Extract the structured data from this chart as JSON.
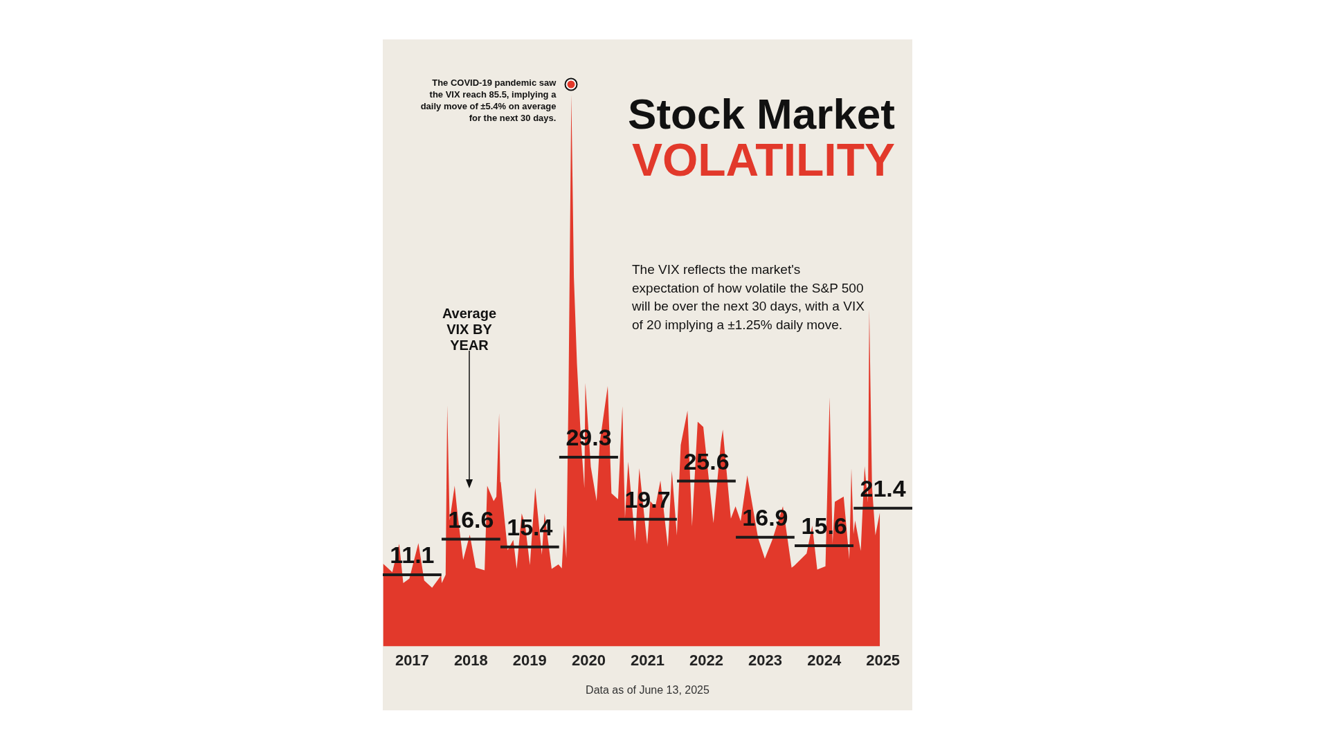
{
  "chart_data": {
    "type": "area",
    "title": "Stock Market VOLATILITY",
    "subtitle": "The VIX reflects the market's expectation of how volatile the S&P 500 will be over the next 30 days, with a VIX of 20 implying a ±1.25% daily move.",
    "annotations": [
      {
        "text": "The COVID-19 pandemic saw the VIX reach 85.5, implying a daily move of ±5.4% on average for the next 30 days.",
        "x": "2020-03-16",
        "y": 85.5
      },
      "Average VIX BY YEAR",
      "Data as of June 13, 2025"
    ],
    "xlim": [
      "2017-01-01",
      "2025-12-31"
    ],
    "xticks": [
      {
        "value": "2017-07-02",
        "label": "2017"
      },
      {
        "value": "2018-07-02",
        "label": "2018"
      },
      {
        "value": "2019-07-02",
        "label": "2019"
      },
      {
        "value": "2020-07-02",
        "label": "2020"
      },
      {
        "value": "2021-07-02",
        "label": "2021"
      },
      {
        "value": "2022-07-02",
        "label": "2022"
      },
      {
        "value": "2023-07-02",
        "label": "2023"
      },
      {
        "value": "2024-07-02",
        "label": "2024"
      },
      {
        "value": "2025-07-02",
        "label": "2025"
      }
    ],
    "ylim": [
      0,
      94
    ],
    "tick_labels": "x",
    "grid": false,
    "legend": false,
    "marker": "none",
    "series": [
      {
        "color": "#e2392b",
        "x": [
          "2017-01-03",
          "2017-03-01",
          "2017-04-13",
          "2017-05-08",
          "2017-06-15",
          "2017-08-10",
          "2017-09-15",
          "2017-11-03",
          "2017-12-29",
          "2018-01-02",
          "2018-01-26",
          "2018-02-05",
          "2018-02-20",
          "2018-03-23",
          "2018-04-10",
          "2018-05-15",
          "2018-06-25",
          "2018-08-01",
          "2018-09-25",
          "2018-10-11",
          "2018-11-20",
          "2018-12-07",
          "2018-12-24",
          "2018-12-31",
          "2019-01-03",
          "2019-02-15",
          "2019-03-22",
          "2019-04-12",
          "2019-05-13",
          "2019-06-03",
          "2019-07-03",
          "2019-08-05",
          "2019-09-15",
          "2019-10-02",
          "2019-11-15",
          "2019-12-27",
          "2020-01-17",
          "2020-01-31",
          "2020-02-14",
          "2020-02-28",
          "2020-03-16",
          "2020-04-01",
          "2020-04-20",
          "2020-05-15",
          "2020-06-05",
          "2020-06-11",
          "2020-07-15",
          "2020-08-20",
          "2020-09-08",
          "2020-10-28",
          "2020-11-20",
          "2020-12-31",
          "2021-01-27",
          "2021-02-12",
          "2021-03-04",
          "2021-04-16",
          "2021-05-12",
          "2021-06-30",
          "2021-07-19",
          "2021-08-19",
          "2021-09-20",
          "2021-11-05",
          "2021-11-30",
          "2021-12-31",
          "2022-01-24",
          "2022-03-07",
          "2022-04-04",
          "2022-05-09",
          "2022-06-13",
          "2022-08-15",
          "2022-09-30",
          "2022-10-12",
          "2022-12-01",
          "2022-12-30",
          "2023-01-31",
          "2023-03-13",
          "2023-05-19",
          "2023-06-30",
          "2023-08-15",
          "2023-10-20",
          "2023-12-13",
          "2023-12-29",
          "2024-03-15",
          "2024-04-19",
          "2024-05-20",
          "2024-07-10",
          "2024-08-05",
          "2024-08-23",
          "2024-09-06",
          "2024-10-31",
          "2024-12-05",
          "2024-12-18",
          "2024-12-31",
          "2025-01-10",
          "2025-02-14",
          "2025-03-10",
          "2025-03-31",
          "2025-04-08",
          "2025-04-25",
          "2025-05-16",
          "2025-06-13"
        ],
        "values": [
          12.8,
          11.5,
          15.9,
          9.8,
          10.5,
          16.0,
          10.2,
          9.1,
          11.0,
          9.8,
          11.1,
          37.3,
          19.5,
          24.9,
          20.5,
          13.4,
          17.3,
          12.2,
          11.8,
          24.9,
          22.5,
          23.2,
          36.1,
          25.4,
          25.5,
          14.9,
          16.5,
          12.0,
          20.6,
          18.9,
          12.6,
          24.6,
          14.2,
          20.6,
          12.0,
          12.7,
          12.1,
          18.8,
          13.7,
          40.1,
          85.5,
          57.1,
          43.8,
          31.9,
          24.5,
          40.8,
          27.8,
          22.5,
          31.5,
          40.3,
          23.7,
          22.8,
          37.2,
          19.9,
          28.6,
          16.3,
          27.6,
          15.8,
          22.5,
          21.6,
          25.7,
          15.4,
          27.2,
          17.2,
          31.2,
          36.5,
          18.6,
          34.8,
          34.0,
          19.1,
          31.6,
          33.6,
          19.8,
          21.7,
          19.4,
          26.5,
          16.8,
          13.6,
          16.5,
          21.7,
          12.2,
          12.5,
          14.4,
          18.7,
          11.9,
          12.4,
          38.6,
          15.9,
          22.4,
          23.2,
          13.5,
          27.6,
          17.4,
          19.5,
          14.8,
          27.9,
          22.3,
          52.3,
          24.8,
          17.2,
          20.8
        ]
      },
      {
        "type": "line",
        "color": "#1b1b1b",
        "x": [
          "2017-01-01",
          "2017-07-02",
          "2017-12-31"
        ],
        "values": [
          11.1,
          11.1,
          11.1
        ],
        "value_labels": [
          null,
          "11.1",
          null
        ]
      },
      {
        "type": "line",
        "color": "#1b1b1b",
        "x": [
          "2018-01-01",
          "2018-07-02",
          "2018-12-31"
        ],
        "values": [
          16.6,
          16.6,
          16.6
        ],
        "value_labels": [
          null,
          "16.6",
          null
        ]
      },
      {
        "type": "line",
        "color": "#1b1b1b",
        "x": [
          "2019-01-01",
          "2019-07-02",
          "2019-12-31"
        ],
        "values": [
          15.4,
          15.4,
          15.4
        ],
        "value_labels": [
          null,
          "15.4",
          null
        ]
      },
      {
        "type": "line",
        "color": "#1b1b1b",
        "x": [
          "2020-01-01",
          "2020-07-02",
          "2020-12-31"
        ],
        "values": [
          29.3,
          29.3,
          29.3
        ],
        "value_labels": [
          null,
          "29.3",
          null
        ]
      },
      {
        "type": "line",
        "color": "#1b1b1b",
        "x": [
          "2021-01-01",
          "2021-07-02",
          "2021-12-31"
        ],
        "values": [
          19.7,
          19.7,
          19.7
        ],
        "value_labels": [
          null,
          "19.7",
          null
        ]
      },
      {
        "type": "line",
        "color": "#1b1b1b",
        "x": [
          "2022-01-01",
          "2022-07-02",
          "2022-12-31"
        ],
        "values": [
          25.6,
          25.6,
          25.6
        ],
        "value_labels": [
          null,
          "25.6",
          null
        ]
      },
      {
        "type": "line",
        "color": "#1b1b1b",
        "x": [
          "2023-01-01",
          "2023-07-02",
          "2023-12-31"
        ],
        "values": [
          16.9,
          16.9,
          16.9
        ],
        "value_labels": [
          null,
          "16.9",
          null
        ]
      },
      {
        "type": "line",
        "color": "#1b1b1b",
        "x": [
          "2024-01-01",
          "2024-07-02",
          "2024-12-31"
        ],
        "values": [
          15.6,
          15.6,
          15.6
        ],
        "value_labels": [
          null,
          "15.6",
          null
        ]
      },
      {
        "type": "line",
        "color": "#1b1b1b",
        "x": [
          "2025-01-01",
          "2025-07-02",
          "2025-12-31"
        ],
        "values": [
          21.4,
          21.4,
          21.4
        ],
        "value_labels": [
          null,
          "21.4",
          null
        ]
      }
    ]
  }
}
